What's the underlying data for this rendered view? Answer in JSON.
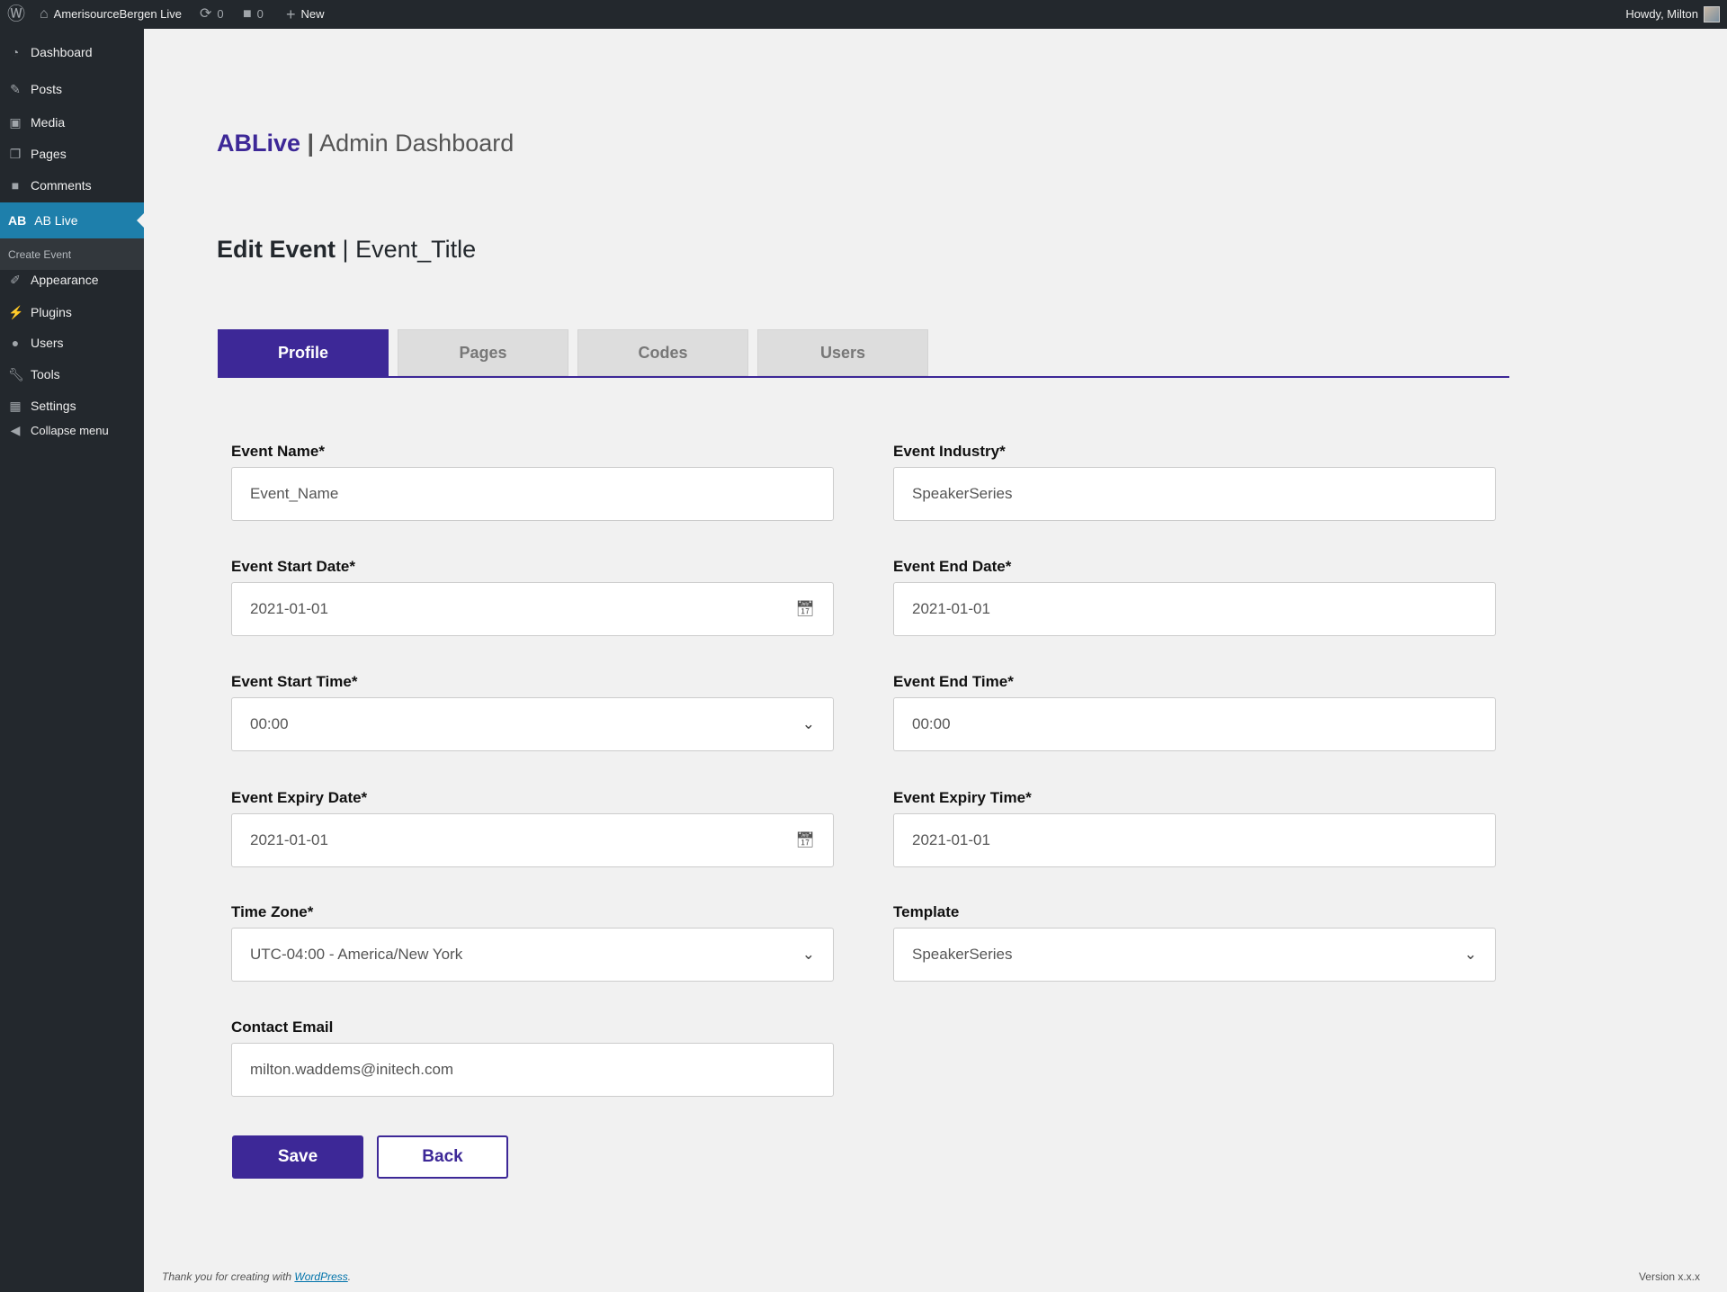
{
  "topbar": {
    "site_name": "AmerisourceBergen Live",
    "updates_count": "0",
    "comments_count": "0",
    "new_label": "New",
    "greeting": "Howdy, Milton"
  },
  "sidebar": {
    "items": [
      {
        "label": "Dashboard",
        "icon": "dashboard-icon"
      },
      {
        "label": "Posts",
        "icon": "pushpin-icon"
      },
      {
        "label": "Media",
        "icon": "media-icon"
      },
      {
        "label": "Pages",
        "icon": "pages-icon"
      },
      {
        "label": "Comments",
        "icon": "comment-icon"
      },
      {
        "label": "AB Live",
        "icon_text": "AB",
        "active": true
      },
      {
        "label": "Create Event",
        "submenu": true
      },
      {
        "label": "Appearance",
        "icon": "paintbrush-icon"
      },
      {
        "label": "Plugins",
        "icon": "plugin-icon"
      },
      {
        "label": "Users",
        "icon": "user-icon"
      },
      {
        "label": "Tools",
        "icon": "wrench-icon"
      },
      {
        "label": "Settings",
        "icon": "settings-icon"
      },
      {
        "label": "Collapse menu",
        "icon": "collapse-icon"
      }
    ]
  },
  "header": {
    "brand": "ABLive",
    "separator": "|",
    "subtitle": "Admin Dashboard"
  },
  "page": {
    "title": "Edit Event",
    "separator": "|",
    "event_title": "Event_Title"
  },
  "tabs": [
    "Profile",
    "Pages",
    "Codes",
    "Users"
  ],
  "form": {
    "event_name": {
      "label": "Event Name*",
      "value": "Event_Name"
    },
    "event_industry": {
      "label": "Event Industry*",
      "value": "SpeakerSeries"
    },
    "start_date": {
      "label": "Event Start Date*",
      "value": "2021-01-01"
    },
    "end_date": {
      "label": "Event End Date*",
      "value": "2021-01-01"
    },
    "start_time": {
      "label": "Event Start Time*",
      "value": "00:00"
    },
    "end_time": {
      "label": "Event End Time*",
      "value": "00:00"
    },
    "expiry_date": {
      "label": "Event Expiry Date*",
      "value": "2021-01-01"
    },
    "expiry_time": {
      "label": "Event Expiry Time*",
      "value": "2021-01-01"
    },
    "time_zone": {
      "label": "Time Zone*",
      "value": "UTC-04:00 - America/New York"
    },
    "template": {
      "label": "Template",
      "value": "SpeakerSeries"
    },
    "contact_email": {
      "label": "Contact Email",
      "value": "milton.waddems@initech.com"
    }
  },
  "buttons": {
    "save": "Save",
    "back": "Back"
  },
  "footer": {
    "text": "Thank you for creating with ",
    "link": "WordPress",
    "period": ".",
    "version": "Version x.x.x"
  },
  "colors": {
    "accent": "#3d2897",
    "sidebar": "#23282d",
    "active_menu": "#1e7fab"
  }
}
